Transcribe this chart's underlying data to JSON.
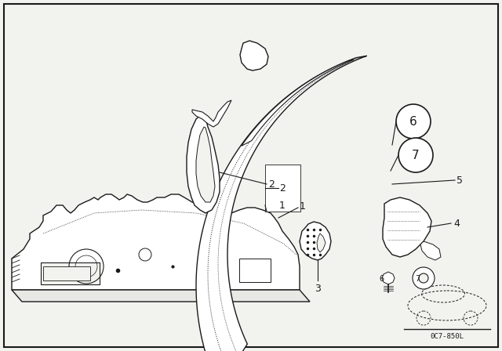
{
  "background_color": "#f2f2ee",
  "border_color": "#000000",
  "line_color": "#1a1a1a",
  "fig_width": 6.4,
  "fig_height": 4.48,
  "dpi": 100,
  "diagram_code": "0C7-850L"
}
